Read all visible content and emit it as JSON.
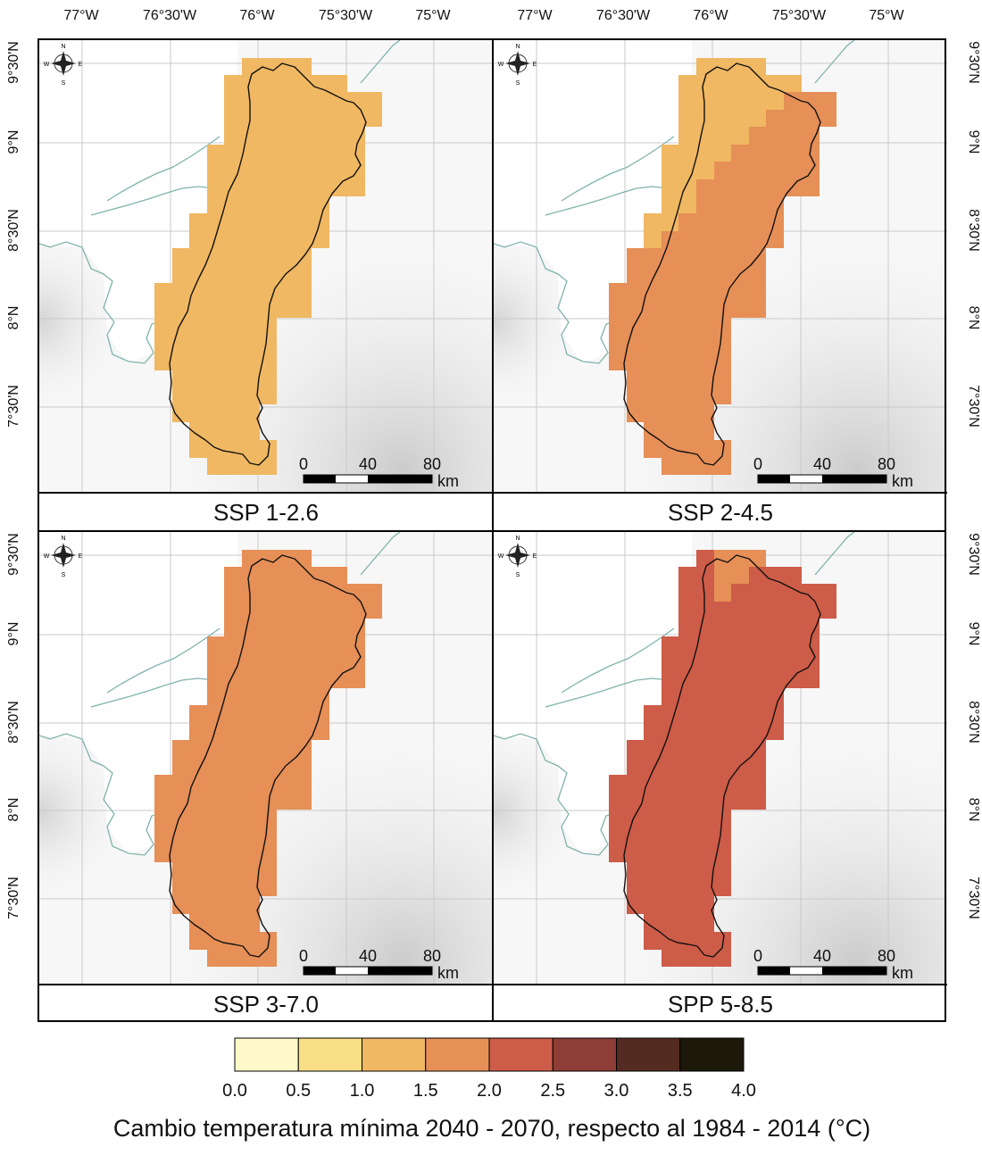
{
  "top_axis_ticks": [
    "77°W",
    "76°30'W",
    "76°W",
    "75°30'W",
    "75°W"
  ],
  "side_axis_ticks": [
    "9°30'N",
    "9°N",
    "8°30'N",
    "8°N",
    "7°30'N"
  ],
  "compass": {
    "n": "N",
    "s": "S",
    "e": "E",
    "w": "W"
  },
  "scale_bar": {
    "labels": [
      "0",
      "40",
      "80"
    ],
    "unit": "km"
  },
  "panels": [
    {
      "label": "SSP 1-2.6",
      "fill_north": "#f0b862",
      "fill_main": "#f0b862"
    },
    {
      "label": "SSP 2-4.5",
      "fill_north": "#f0b862",
      "fill_main": "#e68f57"
    },
    {
      "label": "SSP 3-7.0",
      "fill_north": "#e68f57",
      "fill_main": "#e68f57"
    },
    {
      "label": "SPP 5-8.5",
      "fill_north": "#e68f57",
      "fill_main": "#cd5c48"
    }
  ],
  "legend": {
    "ticks": [
      "0.0",
      "0.5",
      "1.0",
      "1.5",
      "2.0",
      "2.5",
      "3.0",
      "3.5",
      "4.0"
    ],
    "colors": [
      "#fff8c8",
      "#f8df85",
      "#f0b862",
      "#e68f57",
      "#cd5c48",
      "#8e3e36",
      "#532b20",
      "#1c180a"
    ]
  },
  "caption": "Cambio temperatura mínima 2040 - 2070, respecto al 1984 - 2014 (°C)",
  "colors": {
    "coast": "#7fb3ad",
    "terrain": "#c9c9c9",
    "frame": "#000000"
  }
}
